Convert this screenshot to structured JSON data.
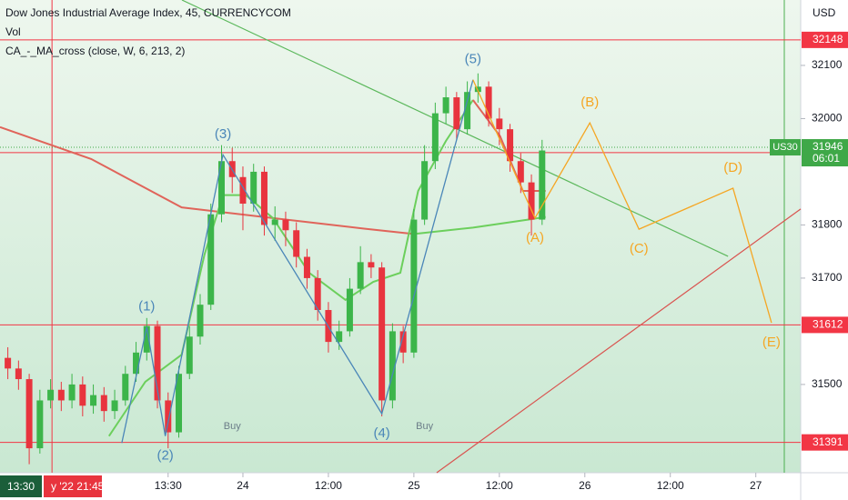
{
  "chart_data": {
    "type": "candlestick",
    "title": "Dow Jones Industrial Average Index, 45, CURRENCYCOM",
    "subtitles": [
      "Vol",
      "CA_-_MA_cross (close, W, 6, 213, 2)"
    ],
    "y_axis_label": "USD",
    "xlim": [
      -34.1,
      78.3
    ],
    "ylim": [
      31334,
      32223
    ],
    "xticks": [
      {
        "value": -10.5,
        "label": "13:30"
      },
      {
        "value": 0,
        "label": "24"
      },
      {
        "value": 12,
        "label": "12:00"
      },
      {
        "value": 24,
        "label": "25"
      },
      {
        "value": 36,
        "label": "12:00"
      },
      {
        "value": 48,
        "label": "26"
      },
      {
        "value": 60,
        "label": "12:00"
      },
      {
        "value": 72,
        "label": "27"
      }
    ],
    "yticks": [
      31500,
      31700,
      31800,
      32000,
      32100
    ],
    "up_color": "#3cb54a",
    "down_color": "#e8343e",
    "x": [
      -33,
      -31.5,
      -30,
      -28.5,
      -27,
      -25.5,
      -24,
      -22.5,
      -21,
      -19.5,
      -18,
      -16.5,
      -15,
      -13.5,
      -12,
      -10.5,
      -9,
      -7.5,
      -6,
      -4.5,
      -3,
      -1.5,
      0,
      1.5,
      3,
      4.5,
      6,
      7.5,
      9,
      10.5,
      12,
      13.5,
      15,
      16.5,
      18,
      19.5,
      21,
      22.5,
      24,
      25.5,
      27,
      28.5,
      30,
      31.5,
      33,
      34.5,
      36,
      37.5,
      39,
      40.5,
      42
    ],
    "open": [
      31550,
      31530,
      31510,
      31380,
      31470,
      31490,
      31470,
      31500,
      31460,
      31480,
      31450,
      31470,
      31520,
      31560,
      31610,
      31470,
      31410,
      31520,
      31590,
      31650,
      31820,
      31920,
      31890,
      31840,
      31900,
      31800,
      31810,
      31790,
      31740,
      31700,
      31640,
      31580,
      31600,
      31680,
      31730,
      31720,
      31470,
      31600,
      31560,
      31810,
      31920,
      32010,
      32040,
      31980,
      32050,
      32060,
      32000,
      31980,
      31920,
      31880,
      31810
    ],
    "high": [
      31570,
      31545,
      31520,
      31490,
      31510,
      31505,
      31520,
      31515,
      31500,
      31495,
      31490,
      31535,
      31580,
      31625,
      31620,
      31485,
      31535,
      31610,
      31670,
      31840,
      31950,
      31945,
      31910,
      31915,
      31910,
      31835,
      31825,
      31805,
      31755,
      31715,
      31655,
      31620,
      31700,
      31760,
      31745,
      31730,
      31615,
      31610,
      31830,
      31950,
      32030,
      32060,
      32050,
      32070,
      32085,
      32070,
      32020,
      31990,
      31935,
      31895,
      31960
    ],
    "low": [
      31510,
      31490,
      31350,
      31370,
      31455,
      31450,
      31455,
      31440,
      31445,
      31430,
      31435,
      31460,
      31505,
      31545,
      31455,
      31380,
      31400,
      31510,
      31575,
      31640,
      31805,
      31860,
      31790,
      31825,
      31780,
      31770,
      31760,
      31720,
      31680,
      31620,
      31560,
      31565,
      31590,
      31670,
      31700,
      31440,
      31455,
      31540,
      31550,
      31800,
      31905,
      31990,
      31960,
      31970,
      32030,
      31985,
      31950,
      31900,
      31860,
      31780,
      31800
    ],
    "close": [
      31530,
      31510,
      31380,
      31470,
      31490,
      31470,
      31500,
      31460,
      31480,
      31450,
      31470,
      31520,
      31560,
      31610,
      31470,
      31410,
      31520,
      31590,
      31650,
      31820,
      31920,
      31890,
      31840,
      31900,
      31800,
      31810,
      31790,
      31740,
      31700,
      31640,
      31580,
      31600,
      31680,
      31730,
      31720,
      31470,
      31600,
      31560,
      31810,
      31920,
      32010,
      32040,
      31980,
      32050,
      32060,
      32000,
      31980,
      31920,
      31880,
      31810,
      31940
    ],
    "overlays": [
      {
        "color": "#e0645a",
        "x": [
          -34.1,
          -21.3,
          -8.6,
          4.2,
          17,
          24
        ],
        "values": [
          31984,
          31924,
          31833,
          31813,
          31793,
          31783
        ]
      },
      {
        "color": "#6ccf5c",
        "x": [
          24,
          32.3,
          40,
          42.5
        ],
        "values": [
          31783,
          31795,
          31810,
          31815
        ]
      },
      {
        "color": "#6ccf5c",
        "x": [
          -18.8,
          -13.7,
          -8.6,
          -5.4,
          -2.8,
          0.4,
          4.2,
          9.3,
          14.4,
          18.3,
          22.1,
          24.6,
          28.5,
          32.3
        ],
        "values": [
          31403,
          31505,
          31556,
          31744,
          31856,
          31856,
          31813,
          31710,
          31659,
          31693,
          31710,
          31864,
          31958,
          32035
        ]
      },
      {
        "color": "#e0645a",
        "x": [
          32.3,
          36.1,
          39.3,
          42.5
        ],
        "values": [
          32035,
          31967,
          31864,
          31864
        ]
      }
    ],
    "waves": [
      {
        "color": "#4a86b8",
        "points": [
          {
            "x": -17,
            "value": 31390
          },
          {
            "label": "(1)",
            "x": -13.5,
            "value": 31608,
            "position": "above"
          },
          {
            "label": "(2)",
            "x": -10.9,
            "value": 31403,
            "position": "below"
          },
          {
            "label": "(3)",
            "x": -2.8,
            "value": 31932,
            "position": "above"
          },
          {
            "label": "(4)",
            "x": 19.5,
            "value": 31445,
            "position": "below"
          },
          {
            "label": "(5)",
            "x": 32.3,
            "value": 32073,
            "position": "above"
          }
        ]
      },
      {
        "color": "#f5a623",
        "points": [
          {
            "x": 32.3,
            "value": 32073
          },
          {
            "label": "(A)",
            "x": 41,
            "value": 31813,
            "position": "below"
          },
          {
            "label": "(B)",
            "x": 48.7,
            "value": 31992,
            "position": "above"
          },
          {
            "label": "(C)",
            "x": 55.6,
            "value": 31792,
            "position": "below"
          },
          {
            "label": "(D)",
            "x": 68.8,
            "value": 31869,
            "position": "above"
          },
          {
            "label": "(E)",
            "x": 74.2,
            "value": 31616,
            "position": "below"
          }
        ]
      }
    ],
    "trendlines": [
      {
        "color": "#5cb85c",
        "x": [
          -8.56,
          68.1
        ],
        "values": [
          32223,
          31741
        ]
      },
      {
        "color": "#d9534f",
        "x": [
          27.2,
          78.3
        ],
        "values": [
          31334,
          31830
        ]
      }
    ],
    "vertical_lines": [
      {
        "x": -26.8,
        "color": "#f23645"
      },
      {
        "x": 76,
        "color": "#4caf50"
      }
    ],
    "price_lines": [
      {
        "value": 32148,
        "color": "#f23645"
      },
      {
        "value": 31936,
        "color": "#f23645"
      },
      {
        "value": 31612,
        "color": "#f23645"
      },
      {
        "value": 31391,
        "color": "#f23645"
      }
    ],
    "last_price": {
      "value": 31946,
      "symbol": "US30",
      "timer": "06:01",
      "color": "#3fa848"
    },
    "signals": [
      {
        "label": "Buy",
        "x": -1.5,
        "value": 31445
      },
      {
        "label": "Buy",
        "x": 25.5,
        "value": 31445
      }
    ],
    "crosshair_labels": [
      {
        "label": "13:30",
        "color": "#1b5e3a"
      },
      {
        "label": "y '22  21:45",
        "color": "#e8343e"
      }
    ]
  }
}
